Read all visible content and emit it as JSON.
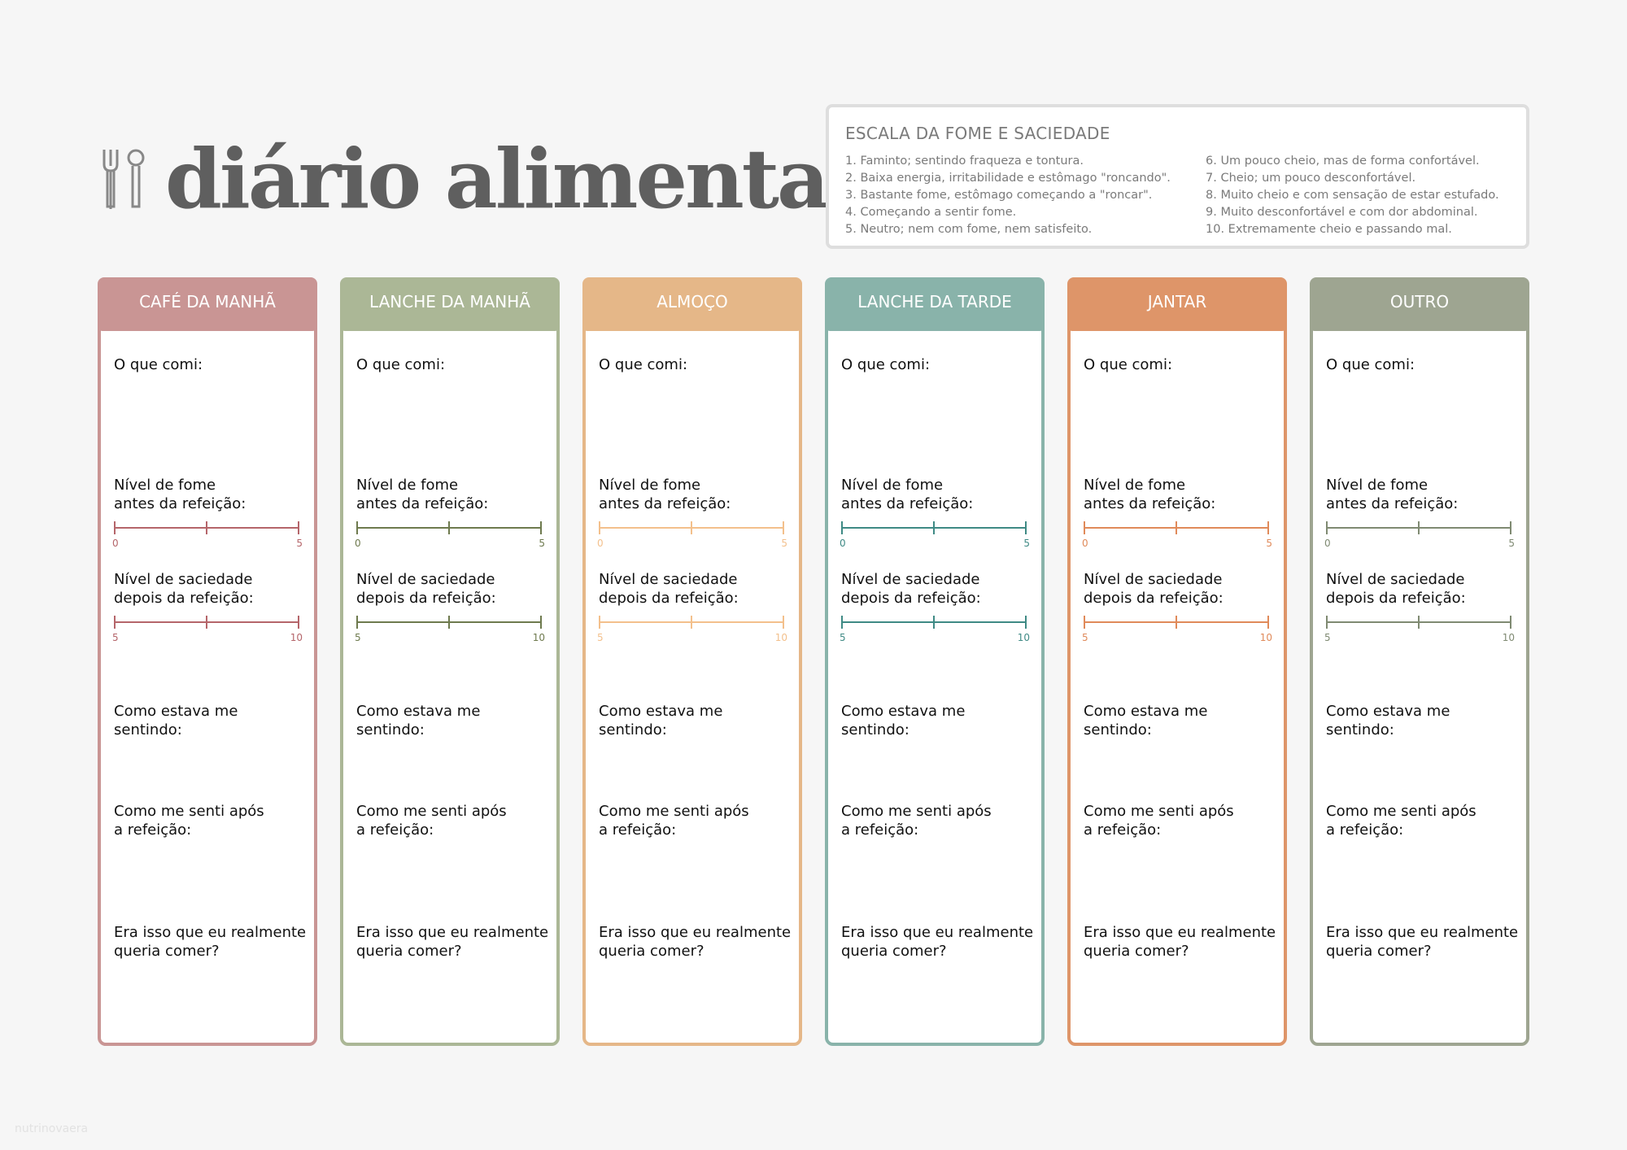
{
  "title": "diário alimentar",
  "scale": {
    "heading": "ESCALA DA FOME E SACIEDADE",
    "items": [
      "1. Faminto; sentindo fraqueza e tontura.",
      "2. Baixa energia, irritabilidade e estômago \"roncando\".",
      "3. Bastante fome, estômago começando a \"roncar\".",
      "4. Começando a sentir fome.",
      "5. Neutro; nem com fome, nem satisfeito.",
      "6. Um pouco cheio, mas de forma confortável.",
      "7. Cheio; um pouco desconfortável.",
      "8. Muito cheio e com sensação de estar estufado.",
      "9. Muito desconfortável e com dor abdominal.",
      "10. Extremamente cheio e passando mal."
    ]
  },
  "labels": {
    "what": "O que comi:",
    "hunger": "Nível de fome\nantes da refeição:",
    "hunger_min": "0",
    "hunger_max": "5",
    "satiety": "Nível de saciedade\ndepois da refeição:",
    "satiety_min": "5",
    "satiety_max": "10",
    "feeling": "Como estava me\nsentindo:",
    "after": "Como me senti após\na refeição:",
    "wanted": "Era isso que eu realmente\nqueria comer?"
  },
  "meals": [
    {
      "name": "CAFÉ DA MANHÃ",
      "color": "#c99594",
      "accent": "#b5656a"
    },
    {
      "name": "LANCHE DA MANHÃ",
      "color": "#abb796",
      "accent": "#6e7a4e"
    },
    {
      "name": "ALMOÇO",
      "color": "#e5b788",
      "accent": "#f3c08c"
    },
    {
      "name": "LANCHE DA TARDE",
      "color": "#89b3aa",
      "accent": "#3f8a85"
    },
    {
      "name": "JANTAR",
      "color": "#de9569",
      "accent": "#e08a5a"
    },
    {
      "name": "OUTRO",
      "color": "#9ea591",
      "accent": "#7f8a72"
    }
  ],
  "footer": "nutrinovaera"
}
